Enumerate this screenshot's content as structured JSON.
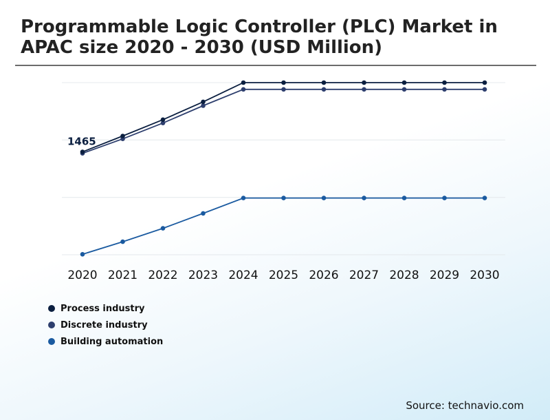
{
  "title": "Programmable Logic Controller (PLC) Market in APAC size 2020 - 2030 (USD Million)",
  "source": "Source: technavio.com",
  "chart_data": {
    "type": "line",
    "title": "Programmable Logic Controller (PLC) Market in APAC size 2020 - 2030 (USD Million)",
    "categories": [
      "2020",
      "2021",
      "2022",
      "2023",
      "2024",
      "2025",
      "2026",
      "2027",
      "2028",
      "2029",
      "2030"
    ],
    "series": [
      {
        "name": "Process industry",
        "color": "#0b1f40",
        "values": [
          1465,
          1630,
          1800,
          1985,
          2185,
          2185,
          2185,
          2185,
          2185,
          2185,
          2185
        ]
      },
      {
        "name": "Discrete industry",
        "color": "#2e3f6e",
        "values": [
          1450,
          1600,
          1765,
          1945,
          2115,
          2115,
          2115,
          2115,
          2115,
          2115,
          2115
        ]
      },
      {
        "name": "Building automation",
        "color": "#1a5aa0",
        "values": [
          400,
          530,
          670,
          825,
          985,
          985,
          985,
          985,
          985,
          985,
          985
        ]
      }
    ],
    "data_labels": [
      {
        "series": "Process industry",
        "category": "2020",
        "text": "1465"
      }
    ],
    "ylim": [
      395,
      2185
    ],
    "grid": true,
    "legend_position": "bottom-left",
    "xlabel": "",
    "ylabel": ""
  }
}
